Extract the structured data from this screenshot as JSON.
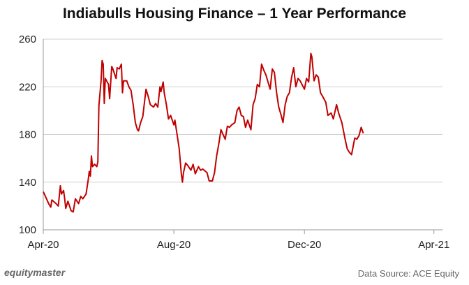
{
  "chart_data": {
    "type": "line",
    "title": "Indiabulls Housing Finance – 1 Year Performance",
    "xlabel": "",
    "ylabel": "",
    "ylim": [
      100,
      260
    ],
    "yticks": [
      100,
      140,
      180,
      220,
      260
    ],
    "xlim": [
      "2020-04-01",
      "2021-04-09"
    ],
    "xticks": [
      {
        "date": "2020-04-01",
        "label": "Apr-20"
      },
      {
        "date": "2020-08-01",
        "label": "Aug-20"
      },
      {
        "date": "2020-12-01",
        "label": "Dec-20"
      },
      {
        "date": "2021-04-01",
        "label": "Apr-21"
      }
    ],
    "grid": true,
    "line_color": "#c00000",
    "series": [
      {
        "values": [
          [
            "2020-04-01",
            132
          ],
          [
            "2020-04-03",
            128
          ],
          [
            "2020-04-06",
            122
          ],
          [
            "2020-04-08",
            119
          ],
          [
            "2020-04-09",
            125
          ],
          [
            "2020-04-13",
            122
          ],
          [
            "2020-04-15",
            120
          ],
          [
            "2020-04-17",
            137
          ],
          [
            "2020-04-18",
            130
          ],
          [
            "2020-04-20",
            133
          ],
          [
            "2020-04-21",
            126
          ],
          [
            "2020-04-22",
            118
          ],
          [
            "2020-04-24",
            124
          ],
          [
            "2020-04-27",
            116
          ],
          [
            "2020-04-29",
            115
          ],
          [
            "2020-05-01",
            126
          ],
          [
            "2020-05-04",
            122
          ],
          [
            "2020-05-06",
            128
          ],
          [
            "2020-05-08",
            126
          ],
          [
            "2020-05-11",
            130
          ],
          [
            "2020-05-13",
            142
          ],
          [
            "2020-05-14",
            149
          ],
          [
            "2020-05-15",
            145
          ],
          [
            "2020-05-16",
            162
          ],
          [
            "2020-05-17",
            153
          ],
          [
            "2020-05-19",
            155
          ],
          [
            "2020-05-21",
            153
          ],
          [
            "2020-05-22",
            157
          ],
          [
            "2020-05-23",
            204
          ],
          [
            "2020-05-25",
            225
          ],
          [
            "2020-05-26",
            242
          ],
          [
            "2020-05-27",
            239
          ],
          [
            "2020-05-28",
            206
          ],
          [
            "2020-05-29",
            227
          ],
          [
            "2020-06-01",
            222
          ],
          [
            "2020-06-02",
            210
          ],
          [
            "2020-06-04",
            237
          ],
          [
            "2020-06-05",
            235
          ],
          [
            "2020-06-08",
            227
          ],
          [
            "2020-06-09",
            236
          ],
          [
            "2020-06-11",
            235
          ],
          [
            "2020-06-13",
            239
          ],
          [
            "2020-06-14",
            215
          ],
          [
            "2020-06-15",
            225
          ],
          [
            "2020-06-18",
            225
          ],
          [
            "2020-06-20",
            220
          ],
          [
            "2020-06-22",
            217
          ],
          [
            "2020-06-24",
            205
          ],
          [
            "2020-06-26",
            190
          ],
          [
            "2020-06-28",
            184
          ],
          [
            "2020-06-29",
            183
          ],
          [
            "2020-07-01",
            190
          ],
          [
            "2020-07-03",
            195
          ],
          [
            "2020-07-06",
            218
          ],
          [
            "2020-07-08",
            212
          ],
          [
            "2020-07-10",
            205
          ],
          [
            "2020-07-13",
            203
          ],
          [
            "2020-07-15",
            206
          ],
          [
            "2020-07-17",
            203
          ],
          [
            "2020-07-19",
            220
          ],
          [
            "2020-07-20",
            216
          ],
          [
            "2020-07-22",
            224
          ],
          [
            "2020-07-23",
            215
          ],
          [
            "2020-07-25",
            205
          ],
          [
            "2020-07-27",
            193
          ],
          [
            "2020-07-29",
            196
          ],
          [
            "2020-08-01",
            188
          ],
          [
            "2020-08-02",
            192
          ],
          [
            "2020-08-04",
            180
          ],
          [
            "2020-08-06",
            168
          ],
          [
            "2020-08-08",
            147
          ],
          [
            "2020-08-09",
            140
          ],
          [
            "2020-08-10",
            148
          ],
          [
            "2020-08-12",
            156
          ],
          [
            "2020-08-14",
            154
          ],
          [
            "2020-08-17",
            150
          ],
          [
            "2020-08-19",
            155
          ],
          [
            "2020-08-21",
            147
          ],
          [
            "2020-08-24",
            153
          ],
          [
            "2020-08-26",
            150
          ],
          [
            "2020-08-28",
            151
          ],
          [
            "2020-09-01",
            148
          ],
          [
            "2020-09-03",
            141
          ],
          [
            "2020-09-06",
            141
          ],
          [
            "2020-09-08",
            148
          ],
          [
            "2020-09-10",
            162
          ],
          [
            "2020-09-12",
            172
          ],
          [
            "2020-09-14",
            184
          ],
          [
            "2020-09-16",
            180
          ],
          [
            "2020-09-18",
            176
          ],
          [
            "2020-09-20",
            187
          ],
          [
            "2020-09-22",
            186
          ],
          [
            "2020-09-24",
            188
          ],
          [
            "2020-09-27",
            190
          ],
          [
            "2020-09-29",
            200
          ],
          [
            "2020-10-01",
            203
          ],
          [
            "2020-10-03",
            196
          ],
          [
            "2020-10-05",
            195
          ],
          [
            "2020-10-07",
            186
          ],
          [
            "2020-10-09",
            192
          ],
          [
            "2020-10-12",
            184
          ],
          [
            "2020-10-14",
            205
          ],
          [
            "2020-10-16",
            210
          ],
          [
            "2020-10-18",
            222
          ],
          [
            "2020-10-20",
            220
          ],
          [
            "2020-10-22",
            239
          ],
          [
            "2020-10-24",
            234
          ],
          [
            "2020-10-26",
            230
          ],
          [
            "2020-10-28",
            224
          ],
          [
            "2020-10-30",
            218
          ],
          [
            "2020-11-01",
            235
          ],
          [
            "2020-11-03",
            232
          ],
          [
            "2020-11-05",
            215
          ],
          [
            "2020-11-07",
            203
          ],
          [
            "2020-11-09",
            197
          ],
          [
            "2020-11-11",
            190
          ],
          [
            "2020-11-13",
            205
          ],
          [
            "2020-11-15",
            212
          ],
          [
            "2020-11-17",
            215
          ],
          [
            "2020-11-19",
            228
          ],
          [
            "2020-11-21",
            236
          ],
          [
            "2020-11-23",
            220
          ],
          [
            "2020-11-25",
            227
          ],
          [
            "2020-11-27",
            225
          ],
          [
            "2020-12-01",
            218
          ],
          [
            "2020-12-03",
            227
          ],
          [
            "2020-12-05",
            224
          ],
          [
            "2020-12-07",
            248
          ],
          [
            "2020-12-08",
            245
          ],
          [
            "2020-12-10",
            225
          ],
          [
            "2020-12-12",
            230
          ],
          [
            "2020-12-14",
            228
          ],
          [
            "2020-12-16",
            215
          ],
          [
            "2020-12-18",
            212
          ],
          [
            "2020-12-21",
            207
          ],
          [
            "2020-12-23",
            196
          ],
          [
            "2020-12-26",
            198
          ],
          [
            "2020-12-28",
            193
          ],
          [
            "2020-12-31",
            205
          ],
          [
            "2021-01-02",
            198
          ],
          [
            "2021-01-05",
            190
          ],
          [
            "2021-01-08",
            176
          ],
          [
            "2021-01-10",
            168
          ],
          [
            "2021-01-12",
            165
          ],
          [
            "2021-01-14",
            163
          ],
          [
            "2021-01-17",
            177
          ],
          [
            "2021-01-19",
            176
          ],
          [
            "2021-01-21",
            179
          ],
          [
            "2021-01-23",
            186
          ],
          [
            "2021-01-25",
            181
          ]
        ]
      }
    ]
  },
  "footer": {
    "brand": "equitymaster",
    "source": "Data Source: ACE Equity"
  }
}
